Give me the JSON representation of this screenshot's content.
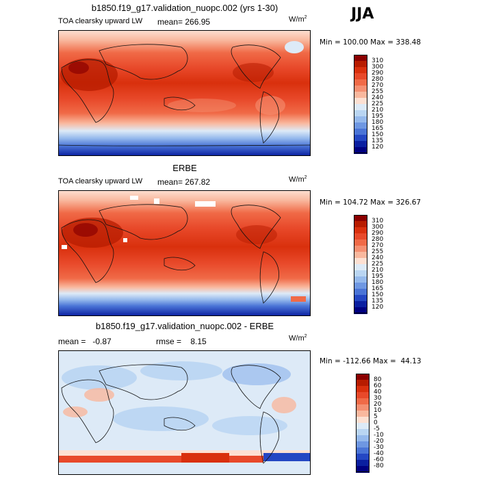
{
  "season": "JJA",
  "panels": [
    {
      "title": "b1850.f19_g17.validation_nuopc.002 (yrs 1-30)",
      "left_label": "TOA clearsky upward LW",
      "mean_text": "mean= 266.95",
      "units_base": "W/m",
      "units_exp": "2",
      "minmax": "Min = 100.00 Max = 338.48",
      "levels": [
        "310",
        "300",
        "290",
        "280",
        "270",
        "255",
        "240",
        "225",
        "210",
        "195",
        "180",
        "165",
        "150",
        "135",
        "120"
      ],
      "colors": [
        "#8b0000",
        "#b71c00",
        "#d9300d",
        "#e8492a",
        "#f06a47",
        "#f59072",
        "#f9b89e",
        "#fde0d2",
        "#ddeaf7",
        "#b9d5f2",
        "#95b9ec",
        "#6e97e2",
        "#4a74d6",
        "#2447c3",
        "#0a1fa0",
        "#000080"
      ]
    },
    {
      "title": "ERBE",
      "left_label": "TOA clearsky upward LW",
      "mean_text": "mean= 267.82",
      "units_base": "W/m",
      "units_exp": "2",
      "minmax": "Min = 104.72 Max = 326.67",
      "levels": [
        "310",
        "300",
        "290",
        "280",
        "270",
        "255",
        "240",
        "225",
        "210",
        "195",
        "180",
        "165",
        "150",
        "135",
        "120"
      ],
      "colors": [
        "#8b0000",
        "#b71c00",
        "#d9300d",
        "#e8492a",
        "#f06a47",
        "#f59072",
        "#f9b89e",
        "#fde0d2",
        "#ddeaf7",
        "#b9d5f2",
        "#95b9ec",
        "#6e97e2",
        "#4a74d6",
        "#2447c3",
        "#0a1fa0",
        "#000080"
      ]
    },
    {
      "title": "b1850.f19_g17.validation_nuopc.002 - ERBE",
      "left_label": "mean =   -0.87",
      "mean_text": "rmse =    8.15",
      "units_base": "W/m",
      "units_exp": "2",
      "minmax": "Min = -112.66 Max =  44.13",
      "levels": [
        "80",
        "60",
        "40",
        "30",
        "20",
        "10",
        "5",
        "0",
        "-5",
        "-10",
        "-20",
        "-30",
        "-40",
        "-60",
        "-80"
      ],
      "colors": [
        "#8b0000",
        "#b71c00",
        "#d9300d",
        "#e8492a",
        "#f06a47",
        "#f59072",
        "#f9b89e",
        "#fde0d2",
        "#ddeaf7",
        "#b9d5f2",
        "#95b9ec",
        "#6e97e2",
        "#4a74d6",
        "#2447c3",
        "#0a1fa0",
        "#000080"
      ]
    }
  ]
}
